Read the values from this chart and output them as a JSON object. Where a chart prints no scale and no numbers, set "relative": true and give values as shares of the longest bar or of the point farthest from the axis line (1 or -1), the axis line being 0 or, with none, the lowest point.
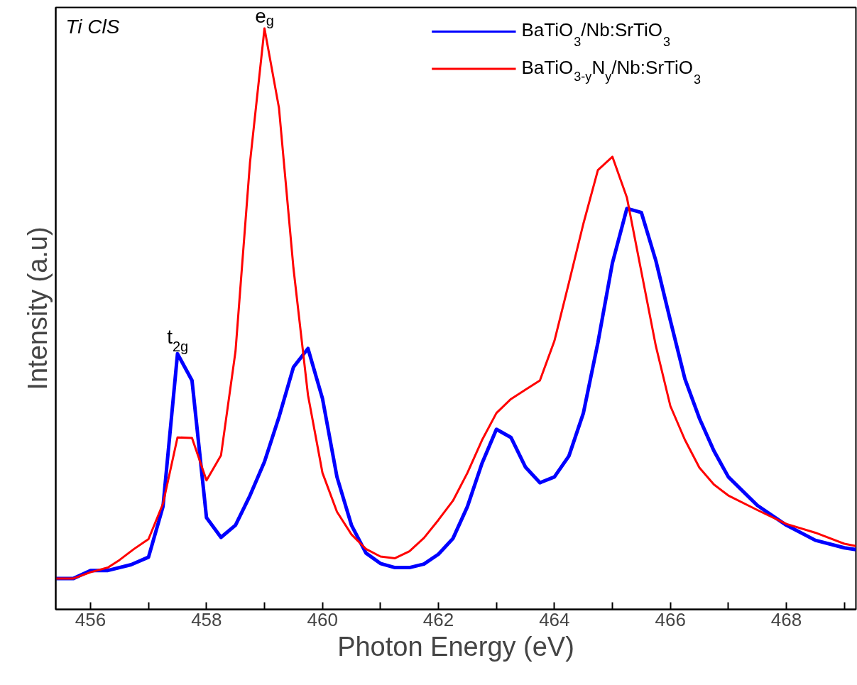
{
  "chart_data": {
    "type": "line",
    "relative": true,
    "xlabel": "Photon Energy (eV)",
    "ylabel": "Intensity (a.u)",
    "xlim": [
      455.4,
      469.2
    ],
    "xticks": [
      456,
      {
        "value": 457,
        "label": null
      },
      458,
      {
        "value": 459,
        "label": null
      },
      460,
      {
        "value": 461,
        "label": null
      },
      462,
      {
        "value": 463,
        "label": null
      },
      464,
      {
        "value": 465,
        "label": null
      },
      466,
      {
        "value": 467,
        "label": null
      },
      468,
      {
        "value": 469,
        "label": null
      }
    ],
    "legend": "top right",
    "grid": false,
    "marker": "none",
    "line_style": "solid",
    "annotations": [
      "Ti ClS",
      {
        "text": "t$_{2g}$",
        "x": 457.5,
        "y": 0.44
      },
      {
        "text": "e$_{g}$",
        "x": 459,
        "y": 1.0
      }
    ],
    "series": [
      {
        "name": "BaTiO$_{3}$/Nb:SrTiO$_{3}$",
        "color": "#0000ff",
        "x": [
          455.4,
          455.7,
          456,
          456.3,
          456.7,
          457,
          457.25,
          457.5,
          457.75,
          458,
          458.25,
          458.5,
          458.75,
          459,
          459.25,
          459.5,
          459.75,
          460,
          460.25,
          460.5,
          460.75,
          461,
          461.25,
          461.5,
          461.75,
          462,
          462.25,
          462.5,
          462.75,
          463,
          463.25,
          463.5,
          463.75,
          464,
          464.25,
          464.5,
          464.75,
          465,
          465.25,
          465.5,
          465.75,
          466,
          466.25,
          466.5,
          466.75,
          467,
          467.5,
          468,
          468.5,
          469,
          469.2
        ],
        "values": [
          0.053,
          0.053,
          0.067,
          0.067,
          0.077,
          0.09,
          0.177,
          0.44,
          0.394,
          0.158,
          0.124,
          0.145,
          0.196,
          0.254,
          0.331,
          0.417,
          0.449,
          0.363,
          0.228,
          0.145,
          0.097,
          0.079,
          0.072,
          0.072,
          0.078,
          0.095,
          0.122,
          0.177,
          0.251,
          0.31,
          0.296,
          0.245,
          0.218,
          0.228,
          0.264,
          0.338,
          0.459,
          0.596,
          0.69,
          0.683,
          0.6,
          0.497,
          0.397,
          0.329,
          0.273,
          0.228,
          0.179,
          0.145,
          0.119,
          0.106,
          0.103
        ]
      },
      {
        "name": "BaTiO$_{3-y}$N$_{y}$/Nb:SrTiO$_{3}$",
        "color": "#ff0000",
        "x": [
          455.4,
          455.7,
          456,
          456.3,
          456.5,
          456.75,
          457,
          457.25,
          457.5,
          457.75,
          458,
          458.25,
          458.5,
          458.75,
          459,
          459.25,
          459.5,
          459.75,
          460,
          460.25,
          460.5,
          460.75,
          461,
          461.25,
          461.5,
          461.75,
          462,
          462.25,
          462.5,
          462.75,
          463,
          463.25,
          463.5,
          463.75,
          464,
          464.25,
          464.5,
          464.75,
          465,
          465.25,
          465.5,
          465.75,
          466,
          466.25,
          466.5,
          466.75,
          467,
          467.5,
          468,
          468.5,
          469,
          469.2
        ],
        "values": [
          0.053,
          0.053,
          0.064,
          0.072,
          0.085,
          0.104,
          0.121,
          0.182,
          0.296,
          0.295,
          0.222,
          0.265,
          0.444,
          0.769,
          1.0,
          0.863,
          0.587,
          0.369,
          0.235,
          0.168,
          0.129,
          0.104,
          0.091,
          0.088,
          0.1,
          0.123,
          0.154,
          0.187,
          0.235,
          0.291,
          0.338,
          0.362,
          0.378,
          0.394,
          0.462,
          0.562,
          0.664,
          0.756,
          0.779,
          0.709,
          0.581,
          0.453,
          0.35,
          0.292,
          0.244,
          0.215,
          0.196,
          0.171,
          0.147,
          0.132,
          0.113,
          0.109
        ]
      }
    ]
  }
}
